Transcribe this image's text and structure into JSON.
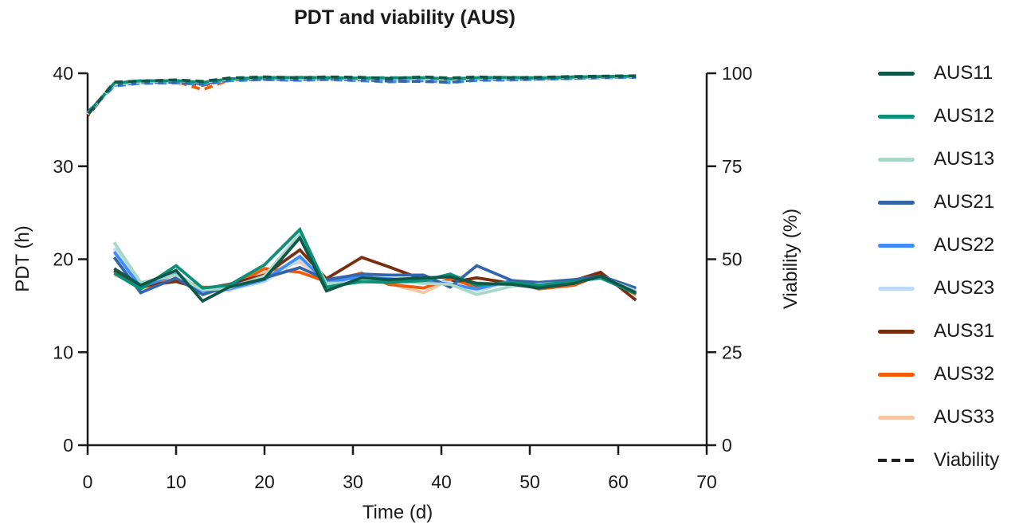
{
  "chart_data": {
    "type": "line",
    "title": "PDT and viability (AUS)",
    "xlabel": "Time (d)",
    "ylabel_left": "PDT (h)",
    "ylabel_right": "Viability (%)",
    "xlim": [
      0,
      70
    ],
    "ylim_left": [
      0,
      40
    ],
    "ylim_right": [
      0,
      100
    ],
    "x_ticks": [
      0,
      10,
      20,
      30,
      40,
      50,
      60,
      70
    ],
    "left_ticks": [
      0,
      10,
      20,
      30,
      40
    ],
    "right_ticks": [
      0,
      25,
      50,
      75,
      100
    ],
    "grid": false,
    "legend_position": "right",
    "axis_color": "#1a1a1a",
    "background": "#ffffff",
    "days_pdt": [
      3,
      6,
      10,
      13,
      16,
      20,
      24,
      27,
      31,
      34,
      38,
      41,
      44,
      48,
      51,
      55,
      58,
      62
    ],
    "days_viability": [
      0,
      3,
      6,
      10,
      13,
      16,
      20,
      24,
      27,
      31,
      34,
      38,
      41,
      44,
      48,
      51,
      55,
      58,
      62
    ],
    "series": [
      {
        "name": "AUS11",
        "color": "#0e584a",
        "pdt": [
          19.0,
          17.2,
          18.8,
          15.5,
          17.0,
          17.9,
          22.3,
          16.6,
          18.0,
          17.8,
          18.0,
          18.1,
          17.4,
          17.3,
          16.9,
          17.4,
          18.2,
          16.4
        ],
        "viability": [
          88.8,
          97.6,
          97.9,
          98.2,
          97.8,
          98.7,
          99.0,
          98.8,
          99.0,
          98.9,
          98.6,
          99.0,
          98.7,
          99.0,
          98.8,
          98.9,
          99.1,
          99.2,
          99.3
        ]
      },
      {
        "name": "AUS12",
        "color": "#0a9178",
        "pdt": [
          18.5,
          16.8,
          19.3,
          16.9,
          17.2,
          19.4,
          23.2,
          17.0,
          17.6,
          17.5,
          17.7,
          18.4,
          17.2,
          17.5,
          17.2,
          17.6,
          18.0,
          16.3
        ],
        "viability": [
          89.2,
          97.3,
          98.0,
          98.0,
          97.5,
          98.5,
          98.8,
          98.9,
          98.8,
          98.7,
          98.8,
          98.8,
          98.5,
          98.8,
          98.9,
          98.7,
          99.0,
          99.1,
          99.2
        ]
      },
      {
        "name": "AUS13",
        "color": "#a8d8c8",
        "pdt": [
          21.8,
          17.5,
          18.3,
          16.7,
          16.9,
          18.2,
          22.7,
          17.4,
          17.5,
          17.7,
          17.4,
          17.3,
          16.2,
          17.1,
          17.3,
          17.5,
          18.1,
          16.6
        ],
        "viability": [
          89.0,
          97.0,
          97.7,
          98.1,
          97.6,
          98.4,
          98.9,
          98.6,
          98.9,
          98.5,
          98.7,
          98.6,
          98.4,
          98.7,
          98.7,
          98.8,
          98.9,
          99.0,
          99.1
        ]
      },
      {
        "name": "AUS21",
        "color": "#3465a8",
        "pdt": [
          20.2,
          16.4,
          18.0,
          16.2,
          17.1,
          18.0,
          19.1,
          17.8,
          18.4,
          18.3,
          18.3,
          17.0,
          19.3,
          17.7,
          17.5,
          17.8,
          18.2,
          16.9
        ],
        "viability": [
          89.5,
          96.8,
          97.5,
          97.6,
          97.2,
          98.2,
          98.4,
          98.3,
          98.5,
          98.2,
          97.9,
          97.8,
          97.6,
          98.3,
          98.4,
          98.5,
          98.7,
          98.9,
          99.0
        ]
      },
      {
        "name": "AUS22",
        "color": "#3f8dfa",
        "pdt": [
          20.8,
          17.0,
          18.4,
          16.6,
          16.8,
          17.8,
          20.3,
          17.5,
          18.1,
          17.9,
          17.7,
          17.3,
          16.8,
          17.7,
          17.3,
          17.7,
          18.0,
          16.8
        ],
        "viability": [
          89.3,
          96.6,
          97.3,
          97.4,
          97.0,
          98.0,
          98.3,
          98.1,
          98.3,
          98.0,
          97.7,
          98.0,
          97.5,
          98.1,
          98.2,
          98.4,
          98.6,
          98.8,
          98.9
        ]
      },
      {
        "name": "AUS23",
        "color": "#bcdcfb",
        "pdt": [
          21.2,
          17.3,
          18.6,
          16.5,
          16.7,
          17.6,
          20.0,
          17.7,
          18.2,
          17.6,
          17.8,
          17.5,
          16.6,
          17.6,
          17.4,
          17.6,
          17.9,
          16.7
        ],
        "viability": [
          89.1,
          96.9,
          97.4,
          97.7,
          97.3,
          98.1,
          98.5,
          98.2,
          98.6,
          98.3,
          98.1,
          98.2,
          97.9,
          98.4,
          98.3,
          98.6,
          98.7,
          98.9,
          99.0
        ]
      },
      {
        "name": "AUS31",
        "color": "#7a2e10",
        "pdt": [
          18.8,
          17.1,
          17.6,
          16.8,
          17.3,
          18.3,
          21.0,
          17.9,
          20.2,
          19.2,
          17.8,
          17.5,
          18.0,
          17.4,
          17.1,
          17.7,
          18.6,
          15.6
        ],
        "viability": [
          88.6,
          97.2,
          97.8,
          97.9,
          96.8,
          98.3,
          98.7,
          98.5,
          98.8,
          98.6,
          98.4,
          98.7,
          98.3,
          98.6,
          98.7,
          98.8,
          99.0,
          99.1,
          99.2
        ]
      },
      {
        "name": "AUS32",
        "color": "#f35b09",
        "pdt": [
          18.7,
          16.9,
          17.9,
          17.0,
          16.9,
          19.0,
          18.6,
          17.6,
          18.5,
          17.3,
          16.9,
          17.9,
          17.0,
          17.6,
          16.8,
          17.2,
          18.3,
          16.2
        ],
        "viability": [
          88.9,
          97.1,
          97.6,
          97.8,
          95.6,
          98.2,
          98.6,
          98.4,
          98.7,
          98.4,
          98.2,
          98.5,
          98.1,
          98.5,
          98.6,
          98.7,
          98.9,
          99.0,
          99.1
        ]
      },
      {
        "name": "AUS33",
        "color": "#f9c6a4",
        "pdt": [
          18.3,
          17.4,
          17.7,
          16.9,
          16.6,
          18.6,
          19.7,
          17.8,
          18.3,
          17.4,
          16.4,
          17.8,
          17.5,
          17.2,
          17.0,
          17.5,
          18.1,
          16.5
        ],
        "viability": [
          89.4,
          97.4,
          97.7,
          98.0,
          97.1,
          98.4,
          98.8,
          98.6,
          98.9,
          98.7,
          98.5,
          98.8,
          98.4,
          98.7,
          98.8,
          98.9,
          99.0,
          99.1,
          99.2
        ]
      }
    ]
  },
  "legend": {
    "entries": [
      {
        "label": "AUS11",
        "color": "#0e584a",
        "dashed": false
      },
      {
        "label": "AUS12",
        "color": "#0a9178",
        "dashed": false
      },
      {
        "label": "AUS13",
        "color": "#a8d8c8",
        "dashed": false
      },
      {
        "label": "AUS21",
        "color": "#3465a8",
        "dashed": false
      },
      {
        "label": "AUS22",
        "color": "#3f8dfa",
        "dashed": false
      },
      {
        "label": "AUS23",
        "color": "#bcdcfb",
        "dashed": false
      },
      {
        "label": "AUS31",
        "color": "#7a2e10",
        "dashed": false
      },
      {
        "label": "AUS32",
        "color": "#f35b09",
        "dashed": false
      },
      {
        "label": "AUS33",
        "color": "#f9c6a4",
        "dashed": false
      },
      {
        "label": "Viability",
        "color": "#1f1f1f",
        "dashed": true
      }
    ]
  }
}
